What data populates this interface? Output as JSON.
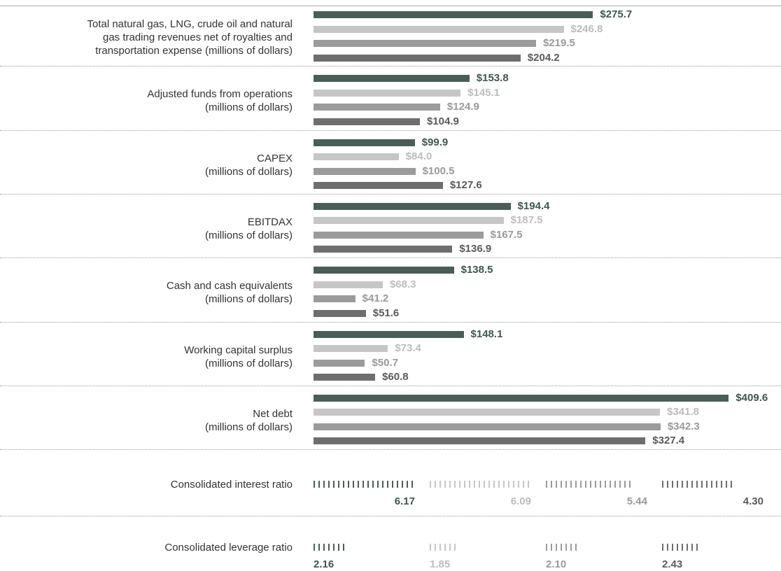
{
  "chart_data": [
    {
      "type": "hbar",
      "categories": [
        "Total natural gas, LNG, crude oil and natural\ngas trading revenues net of royalties and\ntransportation expense (millions of dollars)",
        "Adjusted funds from operations\n(millions of dollars)",
        "CAPEX\n(millions of dollars)",
        "EBITDAX\n(millions of dollars)",
        "Cash and cash equivalents\n(millions of dollars)",
        "Working capital surplus\n(millions of dollars)",
        "Net debt\n(millions of dollars)"
      ],
      "xlim": [
        0,
        428
      ],
      "series": [
        {
          "color": "#4a5e58",
          "label_color": "#3f5650",
          "values": [
            275.7,
            153.8,
            99.9,
            194.4,
            138.5,
            148.1,
            409.6
          ],
          "value_labels": [
            "$275.7",
            "$153.8",
            "$99.9",
            "$194.4",
            "$138.5",
            "$148.1",
            "$409.6"
          ]
        },
        {
          "color": "#c6c6c6",
          "label_color": "#bdbdbd",
          "values": [
            246.8,
            145.1,
            84.0,
            187.5,
            68.3,
            73.4,
            341.8
          ],
          "value_labels": [
            "$246.8",
            "$145.1",
            "$84.0",
            "$187.5",
            "$68.3",
            "$73.4",
            "$341.8"
          ]
        },
        {
          "color": "#9b9b9b",
          "label_color": "#999999",
          "values": [
            219.5,
            124.9,
            100.5,
            167.5,
            41.2,
            50.7,
            342.3
          ],
          "value_labels": [
            "$219.5",
            "$124.9",
            "$100.5",
            "$167.5",
            "$41.2",
            "$50.7",
            "$342.3"
          ]
        },
        {
          "color": "#6e6e6e",
          "label_color": "#5a5a5a",
          "values": [
            204.2,
            104.9,
            127.6,
            136.9,
            51.6,
            60.8,
            327.4
          ],
          "value_labels": [
            "$204.2",
            "$104.9",
            "$127.6",
            "$136.9",
            "$51.6",
            "$60.8",
            "$327.4"
          ]
        }
      ]
    },
    {
      "type": "tally",
      "categories": [
        "Consolidated interest ratio",
        "Consolidated leverage ratio"
      ],
      "series": [
        {
          "color": "#4a5e58",
          "label_color": "#3f5650",
          "values": [
            6.17,
            2.16
          ],
          "value_labels": [
            "6.17",
            "2.16"
          ]
        },
        {
          "color": "#c6c6c6",
          "label_color": "#bdbdbd",
          "values": [
            6.09,
            1.85
          ],
          "value_labels": [
            "6.09",
            "1.85"
          ]
        },
        {
          "color": "#9b9b9b",
          "label_color": "#999999",
          "values": [
            5.44,
            2.1
          ],
          "value_labels": [
            "5.44",
            "2.10"
          ]
        },
        {
          "color": "#6e6e6e",
          "label_color": "#5a5a5a",
          "values": [
            4.3,
            2.43
          ],
          "value_labels": [
            "4.30",
            "2.43"
          ]
        }
      ]
    }
  ]
}
